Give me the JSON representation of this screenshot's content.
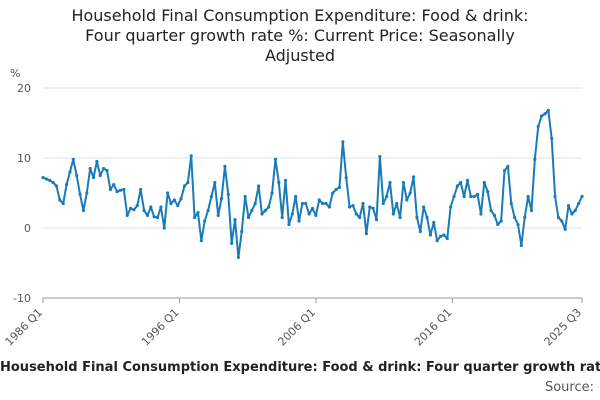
{
  "chart_data": {
    "type": "line",
    "title_lines": [
      "Household Final Consumption Expenditure: Food & drink:",
      "Four quarter growth rate %: Current Price: Seasonally",
      "Adjusted"
    ],
    "ylabel": "%",
    "ylim": [
      -10,
      20
    ],
    "yticks": [
      -10,
      0,
      10,
      20
    ],
    "xticks": [
      "1986 Q1",
      "1996 Q1",
      "2006 Q1",
      "2016 Q1",
      "2025 Q3"
    ],
    "x_start": "1986 Q1",
    "x_end": "2025 Q3",
    "series": [
      {
        "name": "Household Final Consumption Expenditure: Food & drink: Four quarter growth rate %: Current Price: Seasonally Adjusted",
        "color": "#1a7bb9",
        "values": [
          7.2,
          7.0,
          6.8,
          6.5,
          6.0,
          4.0,
          3.5,
          6.2,
          8.0,
          9.8,
          7.5,
          4.8,
          2.5,
          5.0,
          8.5,
          7.2,
          9.5,
          7.5,
          8.5,
          8.2,
          5.5,
          6.2,
          5.2,
          5.4,
          5.5,
          1.8,
          2.8,
          2.6,
          3.2,
          5.5,
          2.5,
          1.8,
          3.0,
          1.6,
          1.5,
          3.0,
          0.0,
          5.0,
          3.5,
          4.0,
          3.2,
          4.2,
          6.0,
          6.5,
          10.3,
          1.5,
          2.2,
          -1.8,
          1.0,
          2.5,
          4.5,
          6.5,
          1.8,
          4.2,
          8.8,
          4.8,
          -2.2,
          1.2,
          -4.2,
          -0.5,
          4.5,
          1.5,
          2.5,
          3.5,
          6.0,
          2.0,
          2.5,
          3.0,
          5.0,
          9.8,
          6.5,
          1.5,
          6.8,
          0.5,
          2.0,
          4.5,
          1.0,
          3.5,
          3.5,
          2.0,
          2.8,
          1.8,
          4.0,
          3.5,
          3.5,
          3.0,
          5.0,
          5.5,
          5.8,
          12.3,
          7.2,
          3.0,
          3.2,
          2.0,
          1.5,
          3.5,
          -0.8,
          3.0,
          2.8,
          1.2,
          10.2,
          3.5,
          4.5,
          6.5,
          2.0,
          3.5,
          1.5,
          6.5,
          4.0,
          5.0,
          7.3,
          1.5,
          -0.5,
          3.0,
          1.5,
          -1.0,
          0.8,
          -1.8,
          -1.2,
          -1.0,
          -1.5,
          3.0,
          4.5,
          6.0,
          6.5,
          4.5,
          6.8,
          4.5,
          4.5,
          4.8,
          2.0,
          6.5,
          5.2,
          2.5,
          1.8,
          0.5,
          1.0,
          8.2,
          8.8,
          3.5,
          1.5,
          0.5,
          -2.5,
          1.5,
          4.5,
          2.5,
          9.8,
          14.5,
          16.0,
          16.3,
          16.8,
          12.8,
          4.5,
          1.5,
          1.0,
          -0.2,
          3.2,
          2.0,
          2.5,
          3.5,
          4.5
        ]
      }
    ]
  },
  "source_label": "Source:"
}
